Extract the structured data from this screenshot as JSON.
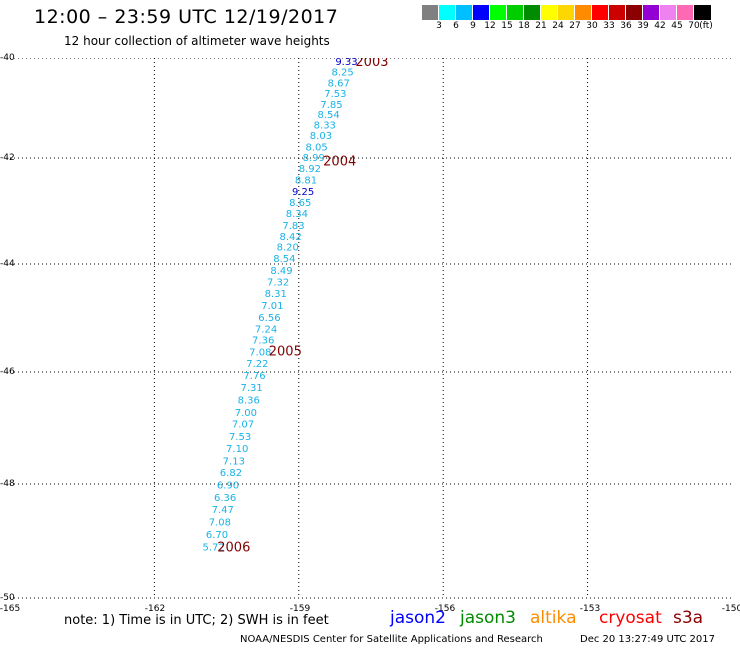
{
  "header": {
    "title": "12:00 – 23:59 UTC 12/19/2017",
    "subtitle": "12 hour collection of altimeter wave heights"
  },
  "colorbar": {
    "cells": [
      "#808080",
      "#00ffff",
      "#00bfff",
      "#0000ff",
      "#00ff00",
      "#00cd00",
      "#008b00",
      "#ffff00",
      "#ffd700",
      "#ff8c00",
      "#ff0000",
      "#cd0000",
      "#8b0000",
      "#9400d3",
      "#ee82ee",
      "#ff69b4",
      "#000000"
    ],
    "labels": [
      "3",
      "6",
      "9",
      "12",
      "15",
      "18",
      "21",
      "24",
      "27",
      "30",
      "33",
      "36",
      "39",
      "42",
      "45",
      "70",
      "(ft)"
    ]
  },
  "axes": {
    "x_ticks": [
      "-165",
      "-162",
      "-159",
      "-156",
      "-153",
      "-150"
    ],
    "y_ticks": [
      "-40",
      "-42",
      "-44",
      "-46",
      "-48",
      "-50"
    ]
  },
  "chart_data": {
    "type": "scatter",
    "xlim": [
      -165,
      -150
    ],
    "ylim": [
      -50,
      -40
    ],
    "grid": true,
    "track": [
      {
        "lon": -158.01,
        "lat": -40.06,
        "swh": "9.33"
      },
      {
        "lon": -158.09,
        "lat": -40.27,
        "swh": "8.25"
      },
      {
        "lon": -158.17,
        "lat": -40.49,
        "swh": "8.67"
      },
      {
        "lon": -158.24,
        "lat": -40.7,
        "swh": "7.53"
      },
      {
        "lon": -158.32,
        "lat": -40.92,
        "swh": "7.85"
      },
      {
        "lon": -158.38,
        "lat": -41.12,
        "swh": "8.54"
      },
      {
        "lon": -158.46,
        "lat": -41.33,
        "swh": "8.33"
      },
      {
        "lon": -158.54,
        "lat": -41.54,
        "swh": "8.03"
      },
      {
        "lon": -158.63,
        "lat": -41.77,
        "swh": "8.05"
      },
      {
        "lon": -158.69,
        "lat": -41.98,
        "swh": "8.99"
      },
      {
        "lon": -158.77,
        "lat": -42.19,
        "swh": "8.92"
      },
      {
        "lon": -158.85,
        "lat": -42.41,
        "swh": "8.81"
      },
      {
        "lon": -158.91,
        "lat": -42.62,
        "swh": "9.25"
      },
      {
        "lon": -158.97,
        "lat": -42.83,
        "swh": "8.65"
      },
      {
        "lon": -159.04,
        "lat": -43.04,
        "swh": "8.34"
      },
      {
        "lon": -159.11,
        "lat": -43.26,
        "swh": "7.83"
      },
      {
        "lon": -159.17,
        "lat": -43.47,
        "swh": "8.42"
      },
      {
        "lon": -159.23,
        "lat": -43.67,
        "swh": "8.20"
      },
      {
        "lon": -159.3,
        "lat": -43.89,
        "swh": "8.54"
      },
      {
        "lon": -159.36,
        "lat": -44.11,
        "swh": "8.49"
      },
      {
        "lon": -159.43,
        "lat": -44.32,
        "swh": "7.32"
      },
      {
        "lon": -159.48,
        "lat": -44.54,
        "swh": "8.31"
      },
      {
        "lon": -159.55,
        "lat": -44.76,
        "swh": "7.01"
      },
      {
        "lon": -159.61,
        "lat": -44.98,
        "swh": "6.56"
      },
      {
        "lon": -159.68,
        "lat": -45.19,
        "swh": "7.24"
      },
      {
        "lon": -159.74,
        "lat": -45.4,
        "swh": "7.36"
      },
      {
        "lon": -159.8,
        "lat": -45.62,
        "swh": "7.08"
      },
      {
        "lon": -159.86,
        "lat": -45.83,
        "swh": "7.22"
      },
      {
        "lon": -159.92,
        "lat": -46.05,
        "swh": "7.76"
      },
      {
        "lon": -159.98,
        "lat": -46.27,
        "swh": "7.31"
      },
      {
        "lon": -160.04,
        "lat": -46.49,
        "swh": "8.36"
      },
      {
        "lon": -160.1,
        "lat": -46.71,
        "swh": "7.00"
      },
      {
        "lon": -160.16,
        "lat": -46.92,
        "swh": "7.07"
      },
      {
        "lon": -160.22,
        "lat": -47.14,
        "swh": "7.53"
      },
      {
        "lon": -160.28,
        "lat": -47.36,
        "swh": "7.10"
      },
      {
        "lon": -160.35,
        "lat": -47.58,
        "swh": "7.13"
      },
      {
        "lon": -160.41,
        "lat": -47.79,
        "swh": "6.82"
      },
      {
        "lon": -160.47,
        "lat": -48.01,
        "swh": "6.90"
      },
      {
        "lon": -160.53,
        "lat": -48.23,
        "swh": "6.36"
      },
      {
        "lon": -160.58,
        "lat": -48.44,
        "swh": "7.47"
      },
      {
        "lon": -160.64,
        "lat": -48.66,
        "swh": "7.08"
      },
      {
        "lon": -160.7,
        "lat": -48.88,
        "swh": "6.70"
      },
      {
        "lon": -160.77,
        "lat": -49.1,
        "swh": "5.72"
      }
    ],
    "time_marks": [
      {
        "lon": -157.48,
        "lat": -40.06,
        "label": "2003"
      },
      {
        "lon": -158.15,
        "lat": -42.05,
        "label": "2004"
      },
      {
        "lon": -159.28,
        "lat": -45.6,
        "label": "2005"
      },
      {
        "lon": -160.35,
        "lat": -49.1,
        "label": "2006"
      }
    ],
    "colors": {
      "swh_blue": "#0000cd",
      "swh_cyan": "#1ab2e6",
      "time_label": "#800000",
      "grid": "#000000"
    }
  },
  "footer": {
    "note": "note:  1) Time is in UTC;  2) SWH is in feet",
    "satellites": [
      {
        "name": "jason2",
        "color": "#0000ff"
      },
      {
        "name": "jason3",
        "color": "#008b00"
      },
      {
        "name": "altika",
        "color": "#ff8c00"
      },
      {
        "name": "cryosat",
        "color": "#ff0000"
      },
      {
        "name": "s3a",
        "color": "#8b0000"
      }
    ],
    "credit": "NOAA/NESDIS Center for Satellite Applications and Research",
    "timestamp": "Dec 20 13:27:49 UTC 2017"
  }
}
